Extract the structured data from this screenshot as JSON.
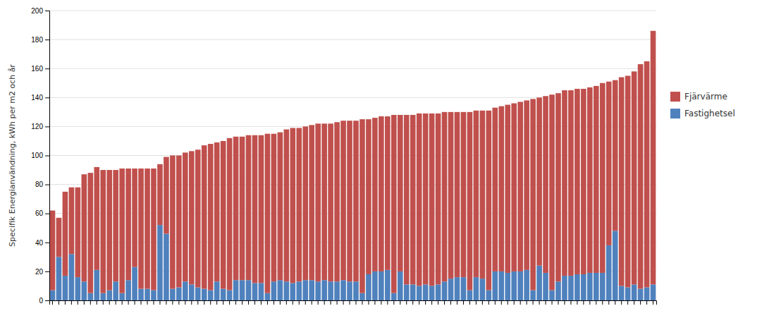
{
  "chart_data": {
    "type": "bar",
    "stacked": true,
    "y_label": "Specifik Energianvändning, kWh per m2 och år",
    "categories": [
      null,
      null,
      null,
      null,
      null,
      null,
      null,
      null,
      null,
      null,
      null,
      null,
      null,
      null,
      null,
      null,
      null,
      null,
      null,
      null,
      null,
      null,
      null,
      null,
      null,
      null,
      null,
      null,
      null,
      null,
      null,
      null,
      null,
      null,
      null,
      null,
      null,
      null,
      null,
      null,
      null,
      null,
      null,
      null,
      null,
      null,
      null,
      null,
      null,
      null,
      null,
      null,
      null,
      null,
      null,
      null,
      null,
      null,
      null,
      null,
      null,
      null,
      null,
      null,
      null,
      null,
      null,
      null,
      null,
      null,
      null,
      null,
      null,
      null,
      null,
      null,
      null,
      null,
      null,
      null,
      null,
      null,
      null,
      null,
      null,
      null,
      null,
      null,
      null,
      null,
      null,
      null,
      null,
      null,
      null,
      null
    ],
    "series": [
      {
        "name": "Fastighetsel",
        "color": "#4F81BD",
        "values": [
          7,
          30,
          17,
          32,
          16,
          13,
          5,
          21,
          5,
          7,
          13,
          5,
          14,
          23,
          8,
          8,
          7,
          52,
          46,
          8,
          9,
          13,
          11,
          9,
          8,
          7,
          13,
          8,
          7,
          14,
          14,
          14,
          12,
          12,
          5,
          13,
          14,
          13,
          12,
          13,
          14,
          14,
          13,
          14,
          13,
          13,
          14,
          13,
          13,
          5,
          18,
          20,
          20,
          21,
          5,
          20,
          11,
          11,
          10,
          11,
          10,
          11,
          13,
          15,
          16,
          16,
          7,
          16,
          15,
          7,
          20,
          20,
          19,
          20,
          20,
          21,
          7,
          24,
          19,
          7,
          13,
          17,
          17,
          18,
          18,
          19,
          19,
          19,
          38,
          48,
          10,
          9,
          11,
          8,
          9,
          11
        ]
      },
      {
        "name": "Fjärvärme",
        "color": "#C0504D",
        "values": [
          55,
          27,
          58,
          46,
          62,
          74,
          83,
          71,
          85,
          83,
          77,
          86,
          77,
          68,
          83,
          83,
          84,
          42,
          53,
          92,
          91,
          89,
          92,
          95,
          99,
          101,
          96,
          102,
          105,
          99,
          99,
          100,
          102,
          102,
          110,
          102,
          102,
          105,
          107,
          106,
          106,
          107,
          109,
          108,
          109,
          110,
          110,
          111,
          111,
          120,
          107,
          106,
          107,
          106,
          123,
          108,
          117,
          117,
          119,
          118,
          119,
          118,
          117,
          115,
          114,
          114,
          123,
          115,
          116,
          124,
          113,
          114,
          116,
          116,
          117,
          117,
          132,
          116,
          122,
          135,
          130,
          128,
          128,
          128,
          128,
          128,
          129,
          131,
          113,
          104,
          144,
          146,
          147,
          155,
          156,
          175
        ]
      }
    ],
    "ylim": [
      0,
      200
    ],
    "yticks": [
      0,
      20,
      40,
      60,
      80,
      100,
      120,
      140,
      160,
      180,
      200
    ],
    "grid": true,
    "legend": "right",
    "tick_labels": "y"
  }
}
